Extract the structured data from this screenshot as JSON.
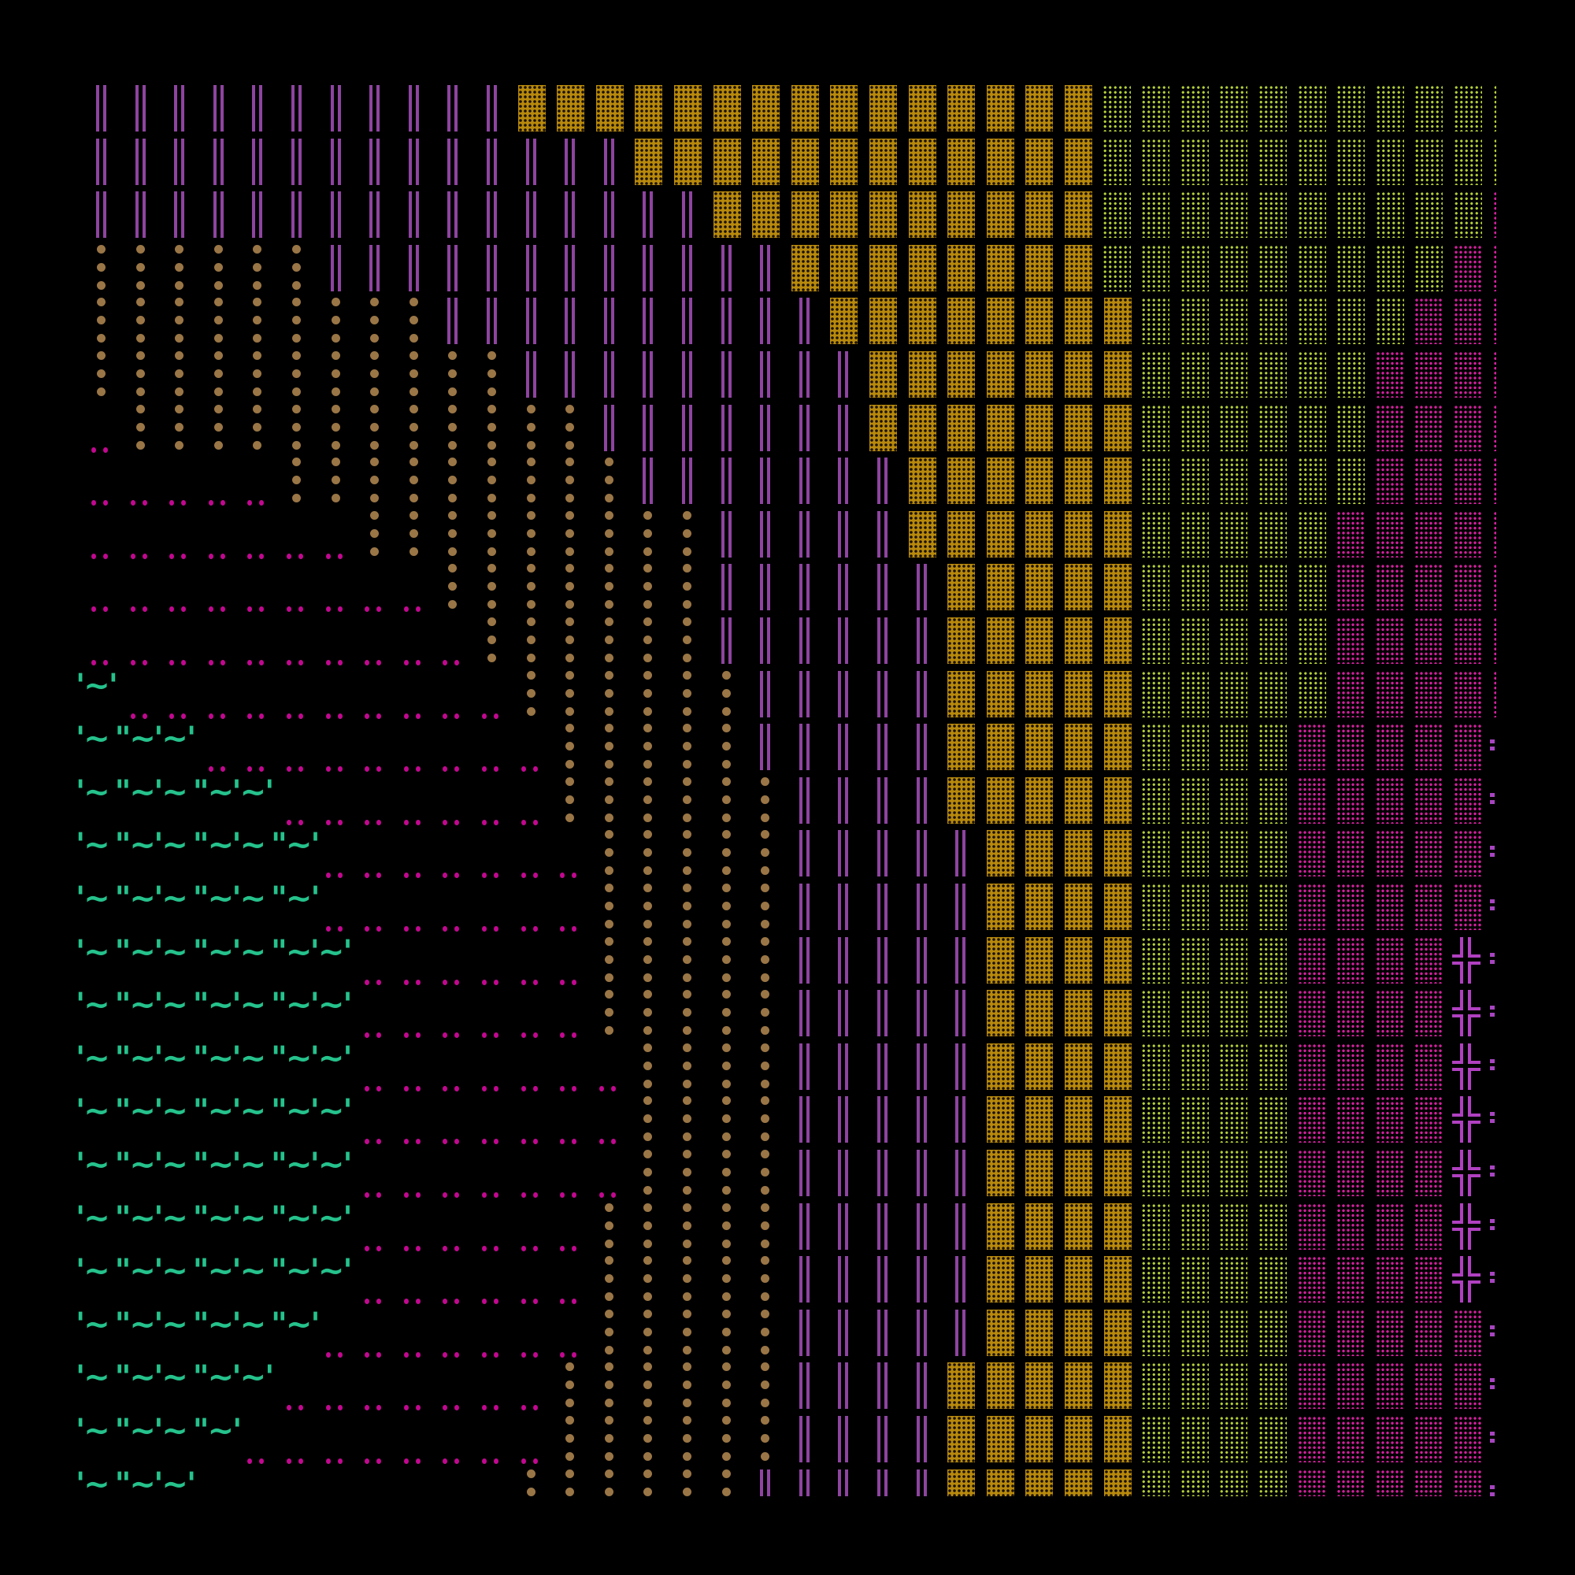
{
  "colors": {
    "background": "#000000",
    "purple_bars": "#8e44a0",
    "gold_blocks": "#b8890c",
    "yellow_dots": "#b3d03a",
    "magenta_dots": "#d3209e",
    "brown_dots": "#9a7646",
    "red_pairs": "#c20890",
    "teal_glyphs": "#25c28c",
    "cross": "#b040c0"
  },
  "glyphs": {
    "teal_even": "'~",
    "teal_odd": "\"~",
    "teal_close": "'"
  },
  "legend": {
    "P": "purple-double-bar",
    "G": "gold-block",
    "Y": "yellow-dot-texture",
    "M": "magenta-dot-texture",
    "B": "brown-dot-column",
    "R": "red-dot-pair",
    "T": "teal-tilde",
    "X": "purple-cross",
    "C": "purple-colon",
    ".": "empty"
  },
  "grid": [
    "PPPPPPPPPPPGGGGGGGGGGGGGGGYYYYYYYYYYY",
    "PPPPPPPPPPPPPPGGGGGGGGGGGGYYYYYYYYYYY",
    "PPPPPPPPPPPPPPPPGGGGGGGGGGYYYYYYYYYYM",
    "BBBBBBPPPPPPPPPPPPGGGGGGGGYYYYYYYYYMM",
    "BBBBBBBBBPPPPPPPPPPGGGGGGGGYYYYYYYMMM",
    "BBBBBBBBBBBPPPPPPPPPGGGGGGGYYYYYYMMMM",
    "RBBBBBBBBBBBBPPPPPPPGGGGGGGYYYYYYMMMM",
    "RRRRRBBBBBBBBBPPPPPPPGGGGGGYYYYYYMMMM",
    "RRRRRRRBBBBBBBBBPPPPPGGGGGGYYYYYMMMMM",
    "RRRRRRRRRBBBBBBBPPPPPPGGGGGYYYYYMMMMM",
    "RRRRRRRRRRBBBBBBPPPPPPGGGGGYYYYYMMMMM",
    "TRRRRRRRRRRBBBBBBPPPPPGGGGGYYYYYMMMMM",
    "TTTRRRRRRRRRBBBBBPPPPPGGGGGYYYYMMMMMC",
    "TTTTTRRRRRRRBBBBBBPPPPGGGGGYYYYMMMMMC",
    "TTTTTTRRRRRRRBBBBBPPPPPGGGGYYYYMMMMMC",
    "TTTTTTRRRRRRRBBBBBPPPPPGGGGYYYYMMMMMC",
    "TTTTTTTRRRRRRBBBBBPPPPPGGGGYYYYMMMMXC",
    "TTTTTTTRRRRRRBBBBBPPPPPGGGGYYYYMMMMXC",
    "TTTTTTTRRRRRRRBBBBPPPPPGGGGYYYYMMMMXC",
    "TTTTTTTRRRRRRRBBBBPPPPPGGGGYYYYMMMMXC",
    "TTTTTTTRRRRRRRBBBBPPPPPGGGGYYYYMMMMXC",
    "TTTTTTTRRRRRRBBBBBPPPPPGGGGYYYYMMMMXC",
    "TTTTTTTRRRRRRBBBBBPPPPPGGGGYYYYMMMMXC",
    "TTTTTTRRRRRRRBBBBBPPPPPGGGGYYYYMMMMMC",
    "TTTTTRRRRRRRBBBBBBPPPPGGGGGYYYYMMMMMC",
    "TTTTRRRRRRRRBBBBBBPPPPGGGGGYYYYMMMMMC",
    "TTT........BBBBBBPPPPPGGGGGYYYYMMMMMC"
  ]
}
